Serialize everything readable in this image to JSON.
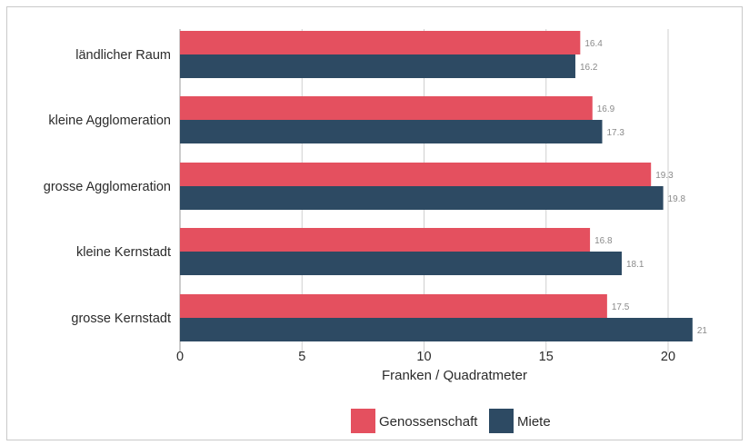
{
  "chart_data": {
    "type": "bar",
    "orientation": "horizontal",
    "categories": [
      "ländlicher Raum",
      "kleine Agglomeration",
      "grosse Agglomeration",
      "kleine Kernstadt",
      "grosse Kernstadt"
    ],
    "series": [
      {
        "name": "Genossenschaft",
        "values": [
          16.4,
          16.9,
          19.3,
          16.8,
          17.5
        ],
        "color": "#e4505f"
      },
      {
        "name": "Miete",
        "values": [
          16.2,
          17.3,
          19.8,
          18.1,
          21
        ],
        "color": "#2d4a63"
      }
    ],
    "value_labels": [
      [
        "16.4",
        "16.9",
        "19.3",
        "16.8",
        "17.5"
      ],
      [
        "16.2",
        "17.3",
        "19.8",
        "18.1",
        "21"
      ]
    ],
    "xlabel": "Franken / Quadratmeter",
    "xlim": [
      0,
      21
    ],
    "xticks": [
      0,
      5,
      10,
      15,
      20
    ],
    "xtick_labels": [
      "0",
      "5",
      "10",
      "15",
      "20"
    ],
    "grid": "vertical",
    "legend": "bottom-center"
  }
}
